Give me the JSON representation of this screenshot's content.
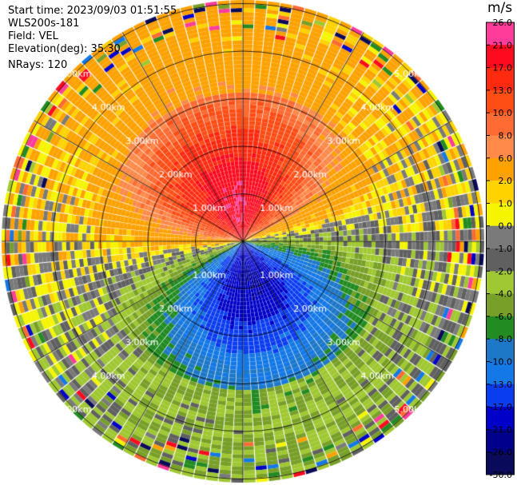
{
  "header": {
    "start_time": "Start time: 2023/09/03 01:51:55",
    "instrument": "WLS200s-181",
    "field": "Field: VEL",
    "elevation": "Elevation(deg): 35.30",
    "nrays": "NRays: 120"
  },
  "colorbar": {
    "unit": "m/s",
    "ticks": [
      "26.0",
      "21.0",
      "17.0",
      "13.0",
      "10.0",
      "8.0",
      "6.0",
      "2.0",
      "1.0",
      "0.0",
      "-1.0",
      "-2.0",
      "-4.0",
      "-6.0",
      "-8.0",
      "-10.0",
      "-13.0",
      "-17.0",
      "-21.0",
      "-26.0",
      "-30.0"
    ],
    "colors": [
      "#ff3c9a",
      "#ff0a1e",
      "#ff2a10",
      "#ff4d16",
      "#ff6b32",
      "#ff8a4a",
      "#ffa200",
      "#ffd200",
      "#f5f500",
      "#7a7a7a",
      "#606060",
      "#a0c832",
      "#78a028",
      "#228b22",
      "#1e78c8",
      "#1478e6",
      "#0a3cf0",
      "#0000c8",
      "#00008c",
      "#0a0a5a"
    ]
  },
  "chart_data": {
    "type": "heatmap",
    "projection": "polar PPI",
    "field": "VEL",
    "units": "m/s",
    "nrays": 120,
    "elevation_deg": 35.3,
    "range_rings_km": [
      1.0,
      2.0,
      3.0,
      4.0,
      5.0
    ],
    "range_ring_labels": [
      "1.00km",
      "2.00km",
      "3.00km",
      "4.00km",
      "5.00km"
    ],
    "radial_spokes_deg": [
      0,
      30,
      60,
      90,
      120,
      150,
      180,
      210,
      240,
      270,
      300,
      330
    ],
    "pattern": {
      "dominant_direction_toward_deg": 170,
      "peak_outbound_mps": 21,
      "peak_inbound_mps": -21,
      "description_regions": [
        {
          "azimuth_range": "310-50",
          "sign": "positive",
          "typical": "10 to 17"
        },
        {
          "azimuth_range": "120-220",
          "sign": "negative",
          "typical": "-6 to -21"
        }
      ]
    },
    "colorbar_range": [
      -30.0,
      26.0
    ]
  }
}
